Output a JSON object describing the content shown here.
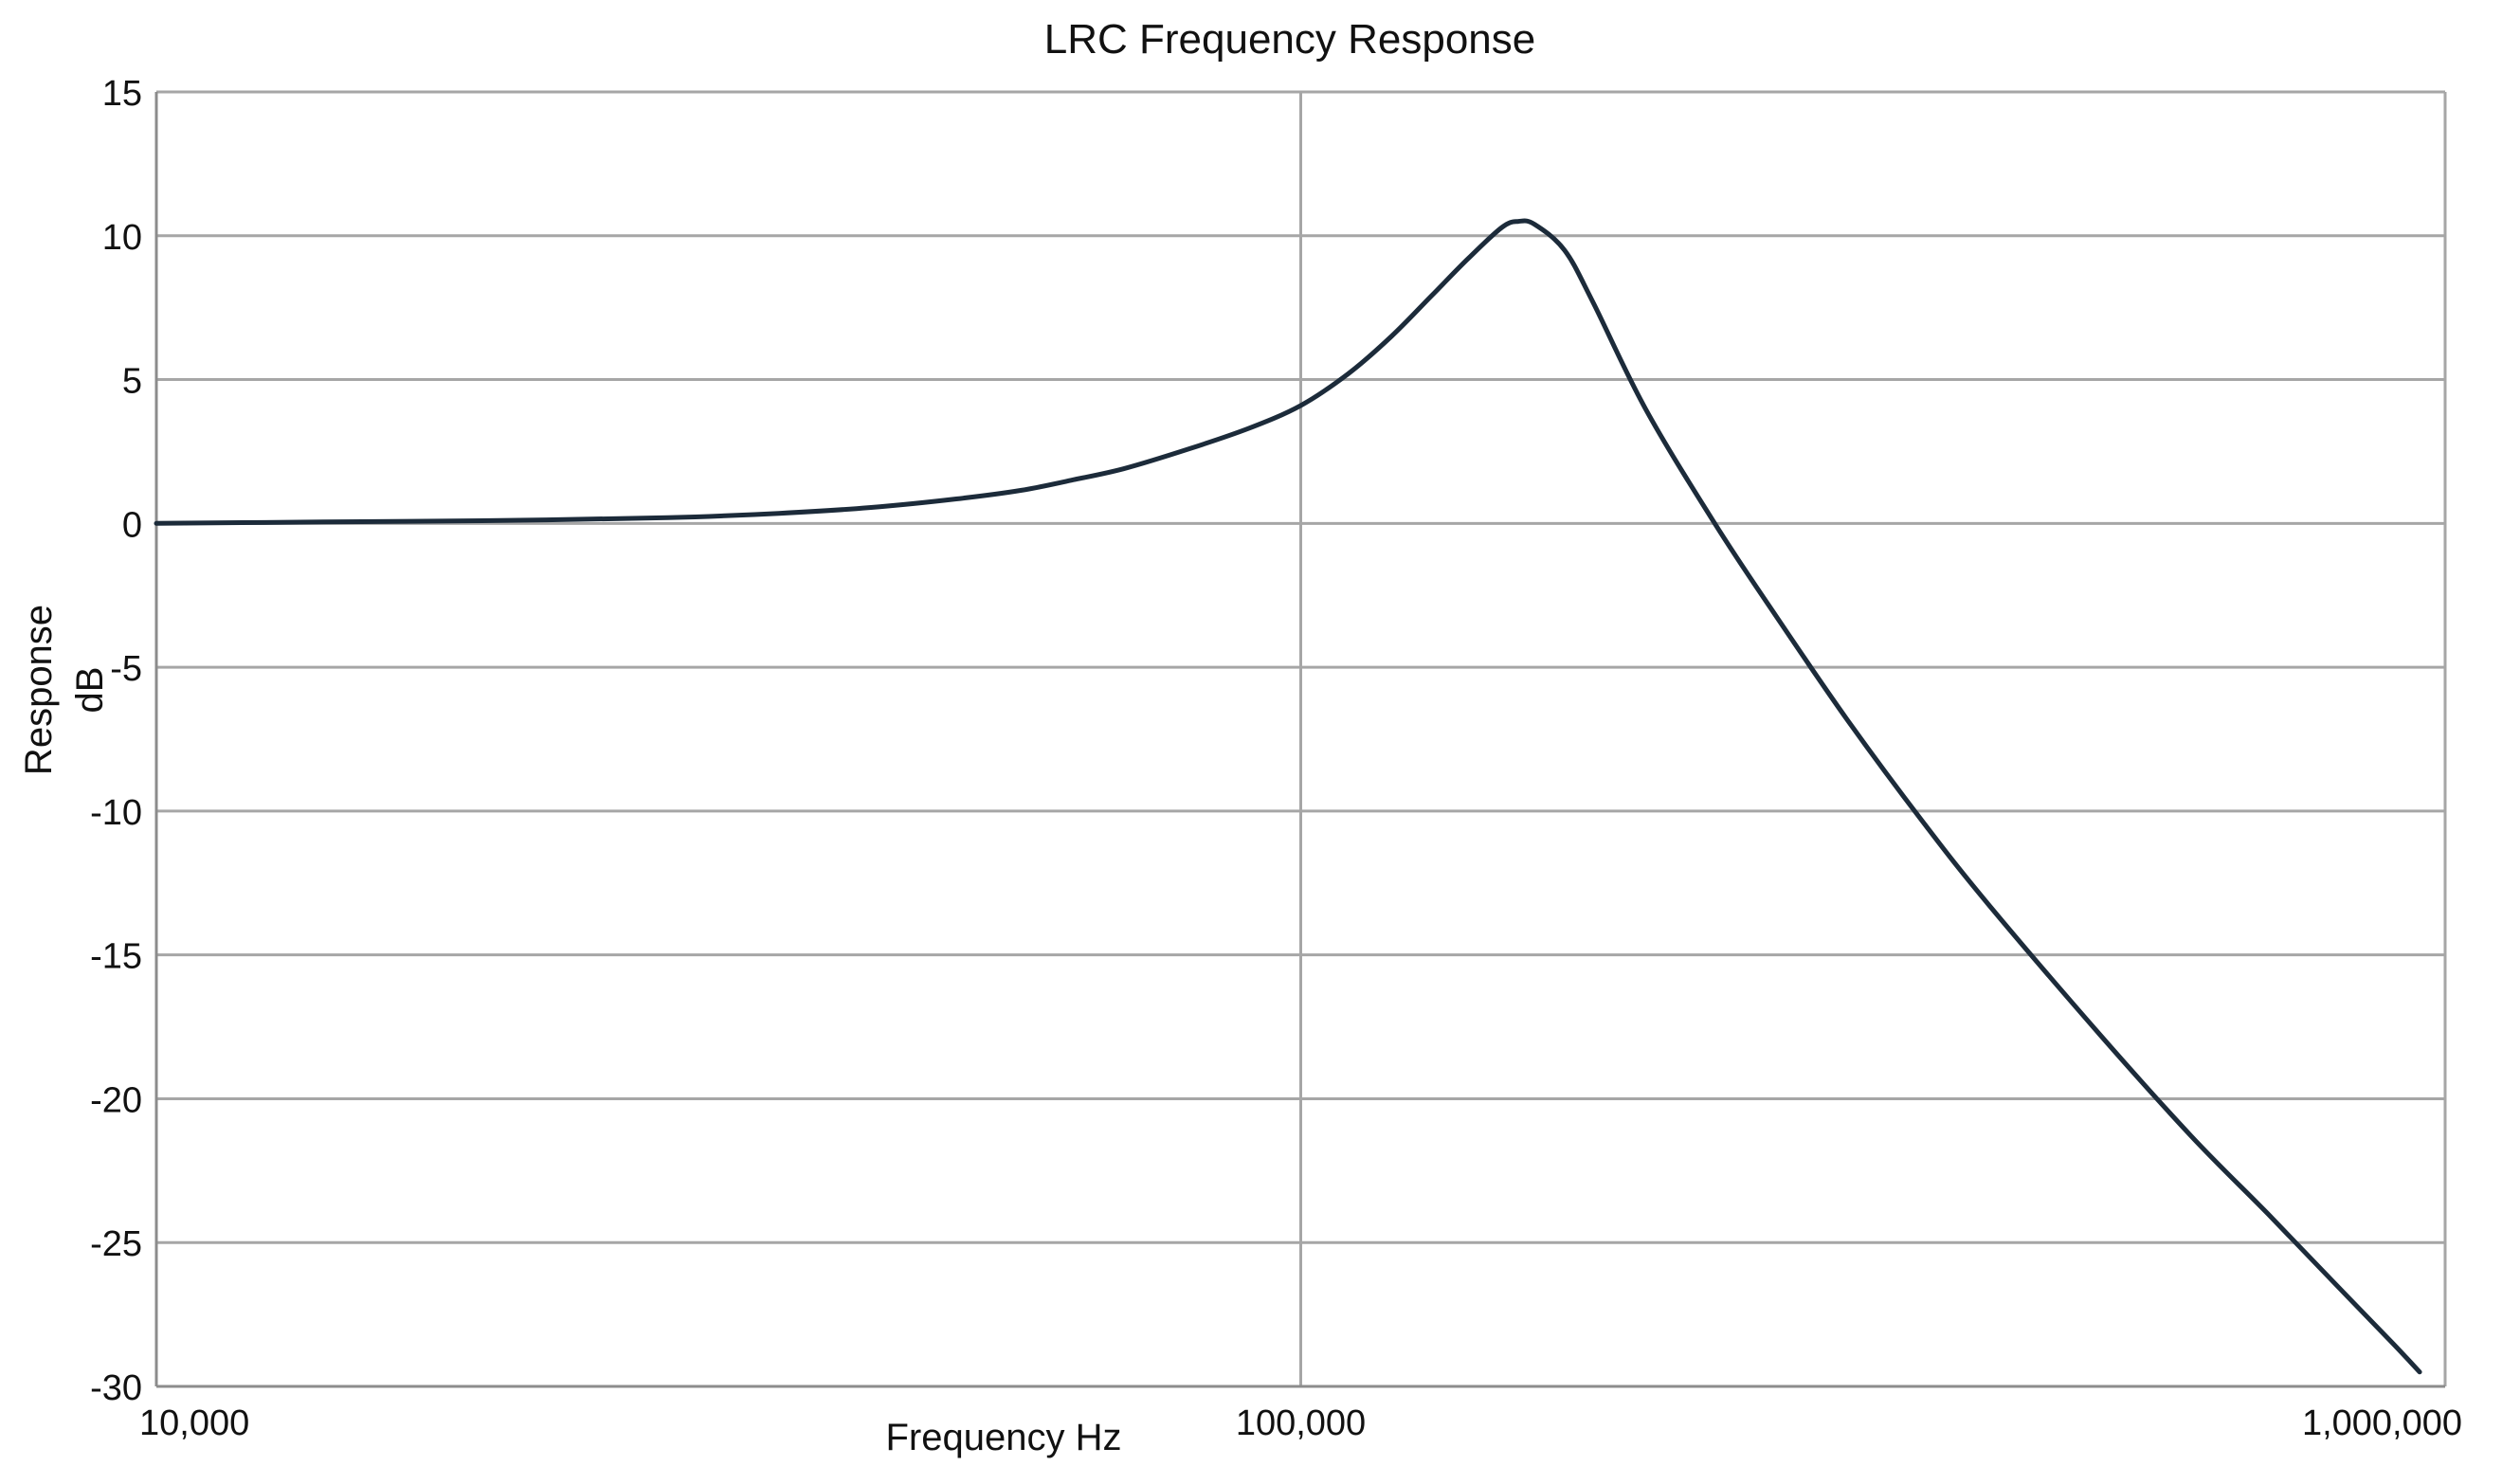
{
  "chart_data": {
    "type": "line",
    "title": "LRC Frequency Response",
    "xlabel": "Frequency Hz",
    "ylabel": [
      "Response",
      "dB"
    ],
    "x_scale": "log",
    "xlim": [
      10000,
      1000000
    ],
    "ylim": [
      -30,
      15
    ],
    "x_ticks": [
      10000,
      100000,
      1000000
    ],
    "x_tick_labels": [
      "10,000",
      "100,000",
      "1,000,000"
    ],
    "y_ticks": [
      15,
      10,
      5,
      0,
      -5,
      -10,
      -15,
      -20,
      -25,
      -30
    ],
    "y_tick_labels": [
      "15",
      "10",
      "5",
      "0",
      "-5",
      "-10",
      "-15",
      "-20",
      "-25",
      "-30"
    ],
    "grid": {
      "horizontal": true,
      "vertical": true
    },
    "legend": "none",
    "colors": {
      "line": "#1c2b3a",
      "grid": "#a6a6a6",
      "axis": "#8c8c8c"
    },
    "series": [
      {
        "x": [
          10000,
          14000,
          20000,
          28000,
          35000,
          42000,
          50000,
          57000,
          63000,
          70000,
          80000,
          90000,
          100000,
          110000,
          120000,
          130000,
          140000,
          150000,
          155000,
          160000,
          170000,
          180000,
          200000,
          230000,
          260000,
          300000,
          350000,
          400000,
          500000,
          600000,
          700000,
          800000,
          900000,
          950000
        ],
        "y": [
          0.0,
          0.05,
          0.1,
          0.2,
          0.35,
          0.55,
          0.85,
          1.15,
          1.5,
          1.9,
          2.6,
          3.3,
          4.1,
          5.2,
          6.5,
          7.9,
          9.2,
          10.3,
          10.5,
          10.4,
          9.5,
          7.7,
          4.0,
          0.0,
          -3.2,
          -6.8,
          -10.4,
          -13.3,
          -17.8,
          -21.3,
          -24.0,
          -26.4,
          -28.5,
          -29.5
        ]
      }
    ]
  }
}
